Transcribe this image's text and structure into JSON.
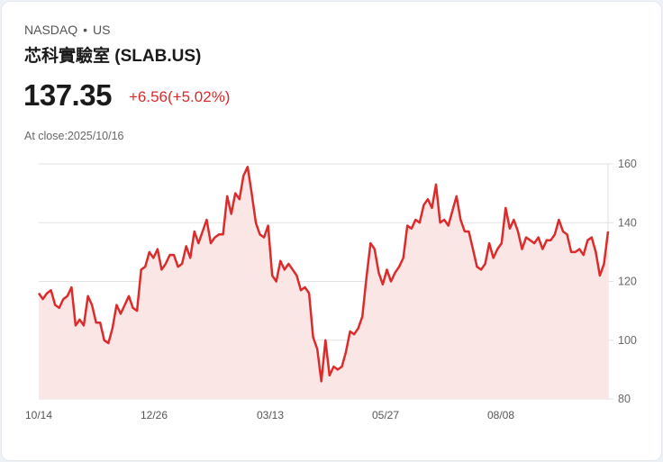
{
  "header": {
    "exchange": "NASDAQ",
    "dot": "•",
    "region": "US",
    "title": "芯科實驗室 (SLAB.US)"
  },
  "quote": {
    "price": "137.35",
    "change": "+6.56(+5.02%)",
    "close_label": "At close:2025/10/16"
  },
  "colors": {
    "line": "#dd2a2a",
    "fill": "#fbe6e6",
    "grid": "#e2e2e2"
  },
  "chart_data": {
    "type": "area",
    "title": "芯科實驗室 (SLAB.US)",
    "xlabel": "",
    "ylabel": "",
    "ylim": [
      80,
      160
    ],
    "yticks": [
      160,
      140,
      120,
      100,
      80
    ],
    "xticks": [
      "10/14",
      "12/26",
      "03/13",
      "05/27",
      "08/08"
    ],
    "grid": true,
    "y_axis_position": "right",
    "series": [
      {
        "name": "SLAB.US",
        "values": [
          116,
          114,
          116,
          117,
          112,
          111,
          114,
          115,
          118,
          105,
          107,
          105,
          115,
          112,
          106,
          106,
          100,
          99,
          104,
          112,
          109,
          112,
          115,
          111,
          110,
          124,
          125,
          130,
          128,
          131,
          124,
          126,
          129,
          129,
          125,
          126,
          132,
          128,
          137,
          133,
          137,
          141,
          133,
          135,
          136,
          136,
          149,
          143,
          150,
          148,
          156,
          159,
          150,
          140,
          136,
          135,
          139,
          122,
          120,
          127,
          124,
          126,
          124,
          122,
          117,
          118,
          116,
          101,
          97,
          86,
          100,
          88,
          91,
          90,
          91,
          96,
          103,
          102,
          104,
          108,
          121,
          133,
          131,
          123,
          119,
          124,
          120,
          123,
          125,
          128,
          139,
          138,
          141,
          140,
          146,
          148,
          145,
          153,
          140,
          141,
          139,
          144,
          149,
          141,
          137,
          137,
          131,
          125,
          124,
          126,
          133,
          128,
          131,
          133,
          145,
          138,
          141,
          137,
          131,
          135,
          134,
          133,
          135,
          131,
          134,
          134,
          136,
          141,
          137,
          136,
          130,
          130,
          131,
          129,
          134,
          135,
          130,
          122,
          126,
          137
        ]
      }
    ]
  }
}
